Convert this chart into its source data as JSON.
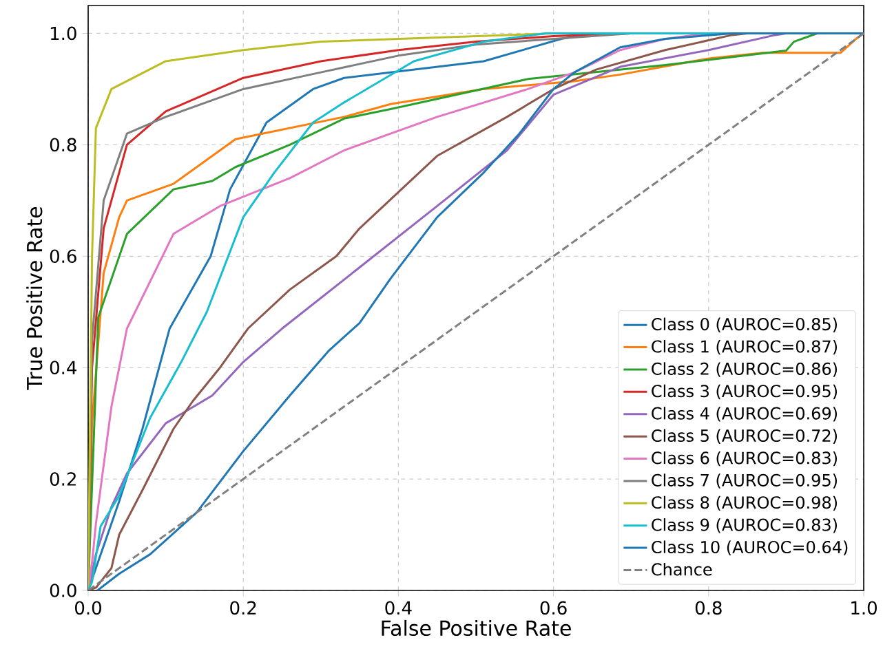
{
  "chart_data": {
    "type": "line",
    "xlabel": "False Positive Rate",
    "ylabel": "True Positive Rate",
    "xlim": [
      0,
      1
    ],
    "ylim": [
      0,
      1.05
    ],
    "xticks": [
      {
        "value": 0,
        "label": "0.0"
      },
      0.2,
      0.4,
      0.6,
      0.8,
      {
        "value": 1,
        "label": "1.0"
      }
    ],
    "yticks": [
      {
        "value": 0,
        "label": "0.0"
      },
      0.2,
      0.4,
      0.6,
      0.8,
      {
        "value": 1,
        "label": "1.0"
      }
    ],
    "grid": true,
    "legend": "bottom right",
    "line_style": "solid",
    "marker": "none",
    "series": [
      {
        "name": "Class 0 (AUROC=0.85)",
        "color": "#1f77b4",
        "x": [
          0,
          0.01,
          0.04,
          0.07,
          0.105,
          0.158,
          0.183,
          0.23,
          0.29,
          0.33,
          0.51,
          0.61,
          0.65,
          1
        ],
        "values": [
          0,
          0.04,
          0.16,
          0.29,
          0.47,
          0.6,
          0.72,
          0.84,
          0.9,
          0.92,
          0.95,
          0.99,
          1,
          1
        ]
      },
      {
        "name": "Class 1 (AUROC=0.87)",
        "color": "#ff7f0e",
        "x": [
          0,
          0.005,
          0.02,
          0.04,
          0.05,
          0.11,
          0.19,
          0.33,
          0.39,
          0.509,
          0.627,
          0.686,
          0.8,
          0.87,
          0.97,
          0.99,
          1
        ],
        "values": [
          0,
          0.3,
          0.57,
          0.67,
          0.7,
          0.73,
          0.81,
          0.85,
          0.873,
          0.9,
          0.914,
          0.926,
          0.955,
          0.965,
          0.965,
          0.99,
          1
        ]
      },
      {
        "name": "Class 2 (AUROC=0.86)",
        "color": "#2ca02c",
        "x": [
          0,
          0.013,
          0.05,
          0.11,
          0.16,
          0.19,
          0.26,
          0.33,
          0.39,
          0.567,
          0.744,
          0.9,
          0.91,
          0.94,
          1
        ],
        "values": [
          0,
          0.49,
          0.64,
          0.72,
          0.735,
          0.76,
          0.8,
          0.847,
          0.864,
          0.918,
          0.943,
          0.969,
          0.985,
          1,
          1
        ]
      },
      {
        "name": "Class 3 (AUROC=0.95)",
        "color": "#d62728",
        "x": [
          0,
          0.005,
          0.02,
          0.05,
          0.1,
          0.2,
          0.3,
          0.4,
          0.5,
          0.6,
          0.7,
          1
        ],
        "values": [
          0,
          0.4,
          0.65,
          0.8,
          0.86,
          0.92,
          0.95,
          0.97,
          0.985,
          0.995,
          1,
          1
        ]
      },
      {
        "name": "Class 4 (AUROC=0.69)",
        "color": "#9467bd",
        "x": [
          0,
          0.01,
          0.03,
          0.05,
          0.1,
          0.16,
          0.2,
          0.25,
          0.35,
          0.45,
          0.54,
          0.6,
          0.686,
          0.8,
          0.886,
          0.9,
          1
        ],
        "values": [
          0,
          0.065,
          0.15,
          0.21,
          0.3,
          0.35,
          0.41,
          0.47,
          0.58,
          0.69,
          0.79,
          0.89,
          0.94,
          0.97,
          0.997,
          1,
          1
        ]
      },
      {
        "name": "Class 5 (AUROC=0.72)",
        "color": "#8c564b",
        "x": [
          0,
          0.01,
          0.03,
          0.04,
          0.07,
          0.11,
          0.135,
          0.17,
          0.206,
          0.26,
          0.32,
          0.35,
          0.45,
          0.54,
          0.6,
          0.655,
          0.744,
          0.83,
          0.85,
          1
        ],
        "values": [
          0,
          0.005,
          0.04,
          0.1,
          0.18,
          0.29,
          0.34,
          0.4,
          0.47,
          0.54,
          0.6,
          0.65,
          0.78,
          0.85,
          0.9,
          0.935,
          0.97,
          0.997,
          1,
          1
        ]
      },
      {
        "name": "Class 6 (AUROC=0.83)",
        "color": "#e377c2",
        "x": [
          0,
          0.005,
          0.01,
          0.03,
          0.05,
          0.11,
          0.17,
          0.26,
          0.33,
          0.45,
          0.567,
          0.627,
          0.686,
          0.744,
          0.8,
          1
        ],
        "values": [
          0,
          0.05,
          0.12,
          0.33,
          0.47,
          0.64,
          0.69,
          0.74,
          0.79,
          0.85,
          0.9,
          0.93,
          0.97,
          0.99,
          1,
          1
        ]
      },
      {
        "name": "Class 7 (AUROC=0.95)",
        "color": "#7f7f7f",
        "x": [
          0,
          0.005,
          0.02,
          0.05,
          0.1,
          0.2,
          0.3,
          0.4,
          0.5,
          0.6,
          0.7,
          1
        ],
        "values": [
          0,
          0.45,
          0.7,
          0.82,
          0.85,
          0.9,
          0.93,
          0.96,
          0.98,
          0.99,
          1,
          1
        ]
      },
      {
        "name": "Class 8 (AUROC=0.98)",
        "color": "#bcbd22",
        "x": [
          0,
          0.005,
          0.01,
          0.03,
          0.1,
          0.2,
          0.3,
          0.5,
          0.6,
          1
        ],
        "values": [
          0,
          0.6,
          0.83,
          0.9,
          0.95,
          0.97,
          0.985,
          0.995,
          1,
          1
        ]
      },
      {
        "name": "Class 9 (AUROC=0.83)",
        "color": "#17becf",
        "x": [
          0,
          0.005,
          0.016,
          0.04,
          0.08,
          0.12,
          0.153,
          0.2,
          0.24,
          0.29,
          0.33,
          0.42,
          0.51,
          0.59,
          1
        ],
        "values": [
          0,
          0.015,
          0.115,
          0.17,
          0.31,
          0.41,
          0.5,
          0.67,
          0.75,
          0.84,
          0.876,
          0.95,
          0.985,
          1,
          1
        ]
      },
      {
        "name": "Class 10 (AUROC=0.64)",
        "color": "#1f77b4",
        "x": [
          0.012,
          0.04,
          0.08,
          0.14,
          0.2,
          0.26,
          0.31,
          0.35,
          0.39,
          0.45,
          0.51,
          0.556,
          0.6,
          0.627,
          0.686,
          0.744,
          0.83,
          1
        ],
        "values": [
          0,
          0.03,
          0.065,
          0.14,
          0.25,
          0.35,
          0.43,
          0.48,
          0.56,
          0.67,
          0.75,
          0.82,
          0.9,
          0.93,
          0.975,
          0.99,
          1,
          1
        ]
      },
      {
        "name": "Chance",
        "color": "#808080",
        "line_style": "dashed",
        "x": [
          0,
          1
        ],
        "values": [
          0,
          1
        ]
      }
    ]
  }
}
